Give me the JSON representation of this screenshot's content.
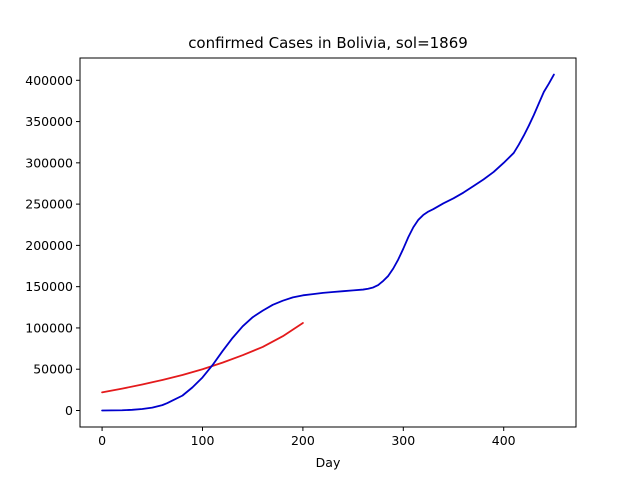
{
  "chart_data": {
    "type": "line",
    "title": "confirmed Cases in Bolivia, sol=1869",
    "xlabel": "Day",
    "ylabel": "",
    "xlim": [
      -22,
      472
    ],
    "ylim": [
      -20000,
      427000
    ],
    "xticks": [
      0,
      100,
      200,
      300,
      400
    ],
    "yticks": [
      0,
      50000,
      100000,
      150000,
      200000,
      250000,
      300000,
      350000,
      400000
    ],
    "grid": false,
    "series": [
      {
        "color": "#e41a1c",
        "x": [
          0,
          20,
          40,
          60,
          80,
          100,
          120,
          140,
          160,
          180,
          200
        ],
        "y": [
          22000,
          26500,
          31500,
          37000,
          43000,
          50000,
          58000,
          67000,
          77000,
          90000,
          106000
        ]
      },
      {
        "color": "#0000cd",
        "x": [
          0,
          10,
          20,
          30,
          40,
          50,
          60,
          65,
          70,
          80,
          90,
          100,
          110,
          120,
          130,
          140,
          150,
          160,
          170,
          180,
          190,
          200,
          210,
          220,
          230,
          240,
          250,
          260,
          265,
          270,
          275,
          280,
          285,
          290,
          295,
          300,
          305,
          310,
          315,
          320,
          325,
          330,
          340,
          350,
          360,
          370,
          380,
          390,
          400,
          410,
          415,
          420,
          425,
          430,
          435,
          440,
          445,
          450
        ],
        "y": [
          0,
          100,
          300,
          800,
          1800,
          3500,
          6500,
          9000,
          12000,
          18000,
          28000,
          40000,
          55000,
          72000,
          88000,
          102000,
          113000,
          121000,
          128000,
          133000,
          137000,
          139500,
          141000,
          142500,
          143500,
          144500,
          145500,
          146500,
          147500,
          149000,
          152000,
          157000,
          163000,
          172000,
          183000,
          196000,
          210000,
          222000,
          231000,
          237000,
          241000,
          244000,
          251000,
          257000,
          264000,
          272000,
          280000,
          289000,
          300000,
          312000,
          322000,
          333000,
          345000,
          358000,
          372000,
          386000,
          396000,
          407000
        ]
      }
    ]
  }
}
